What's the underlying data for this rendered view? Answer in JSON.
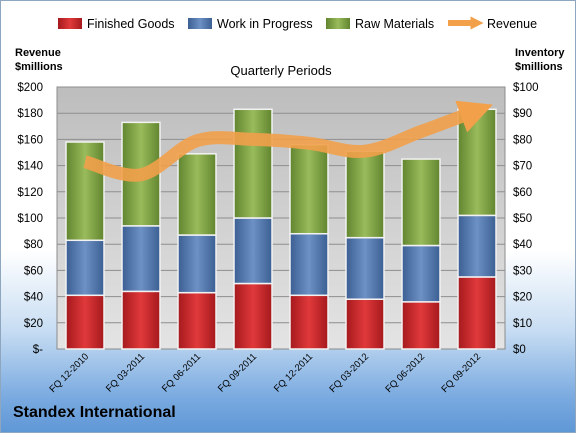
{
  "chart_data": {
    "type": "bar",
    "title": "Quarterly Periods",
    "company": "Standex International",
    "left_axis_label": [
      "Revenue",
      "$millions"
    ],
    "right_axis_label": [
      "Inventory",
      "$millions"
    ],
    "categories": [
      "FQ 12-2010",
      "FQ 03-2011",
      "FQ 06-2011",
      "FQ 09-2011",
      "FQ 12-2011",
      "FQ 03-2012",
      "FQ 06-2012",
      "FQ 09-2012"
    ],
    "left_ylim": [
      0,
      200
    ],
    "right_ylim": [
      0,
      100
    ],
    "left_ticks": [
      "$-",
      "$20",
      "$40",
      "$60",
      "$80",
      "$100",
      "$120",
      "$140",
      "$160",
      "$180",
      "$200"
    ],
    "right_ticks": [
      "$0",
      "$10",
      "$20",
      "$30",
      "$40",
      "$50",
      "$60",
      "$70",
      "$80",
      "$90",
      "$100"
    ],
    "grid": true,
    "legend_position": "top",
    "stacked_axis": "right",
    "series": [
      {
        "name": "Finished Goods",
        "type": "bar",
        "axis": "right",
        "color": "#c0282b",
        "values": [
          20.5,
          22,
          21.5,
          25,
          20.5,
          19,
          18,
          27.5
        ]
      },
      {
        "name": "Work in Progress",
        "type": "bar",
        "axis": "right",
        "color": "#4f76ad",
        "values": [
          21,
          25,
          22,
          25,
          23.5,
          23.5,
          21.5,
          23.5
        ]
      },
      {
        "name": "Raw Materials",
        "type": "bar",
        "axis": "right",
        "color": "#7ea146",
        "values": [
          37.5,
          39.5,
          31,
          41.5,
          34,
          33,
          33,
          40.5
        ]
      },
      {
        "name": "Revenue",
        "type": "line",
        "axis": "left",
        "color": "#f2a04a",
        "values": [
          143,
          133,
          159,
          160,
          157,
          151,
          166,
          182
        ]
      }
    ]
  }
}
